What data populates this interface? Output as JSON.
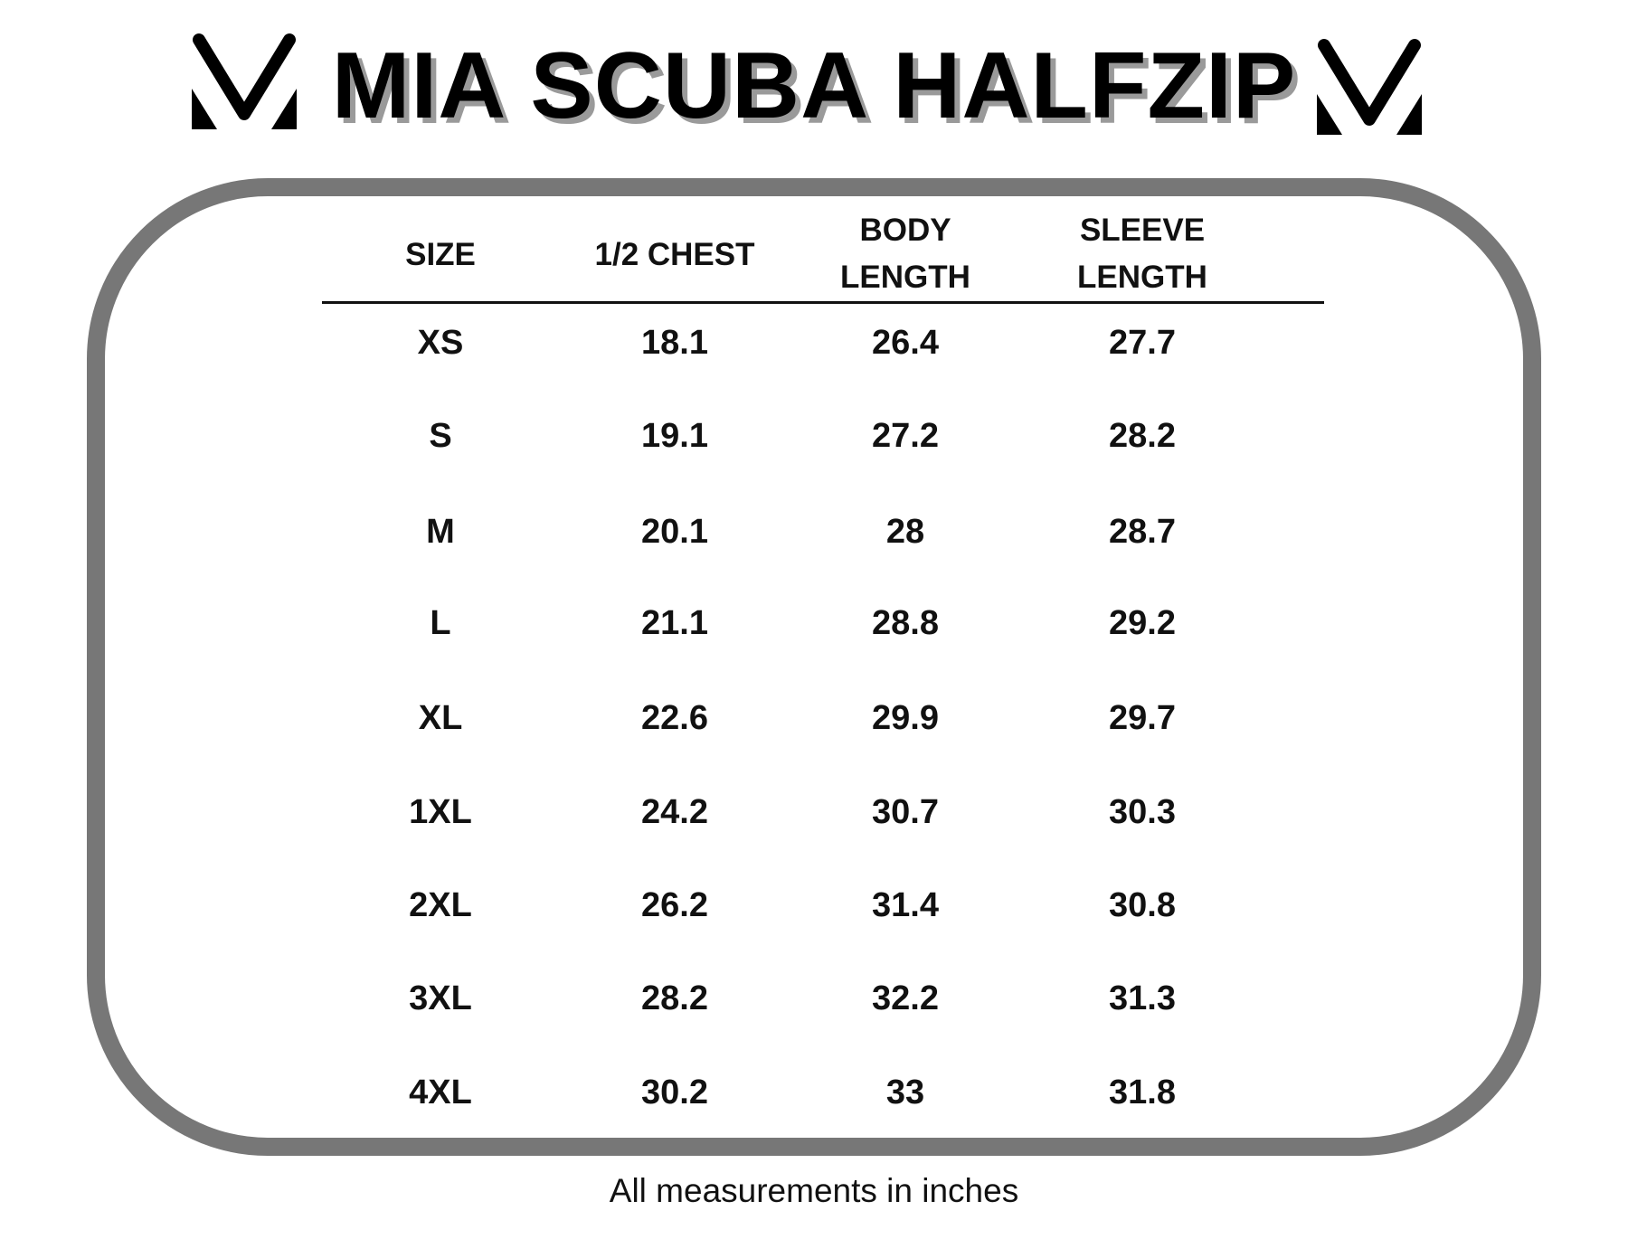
{
  "title": "MIA SCUBA HALFZIP",
  "logo_icon": "chevron-m-logo-icon",
  "border_color": "#777777",
  "table": {
    "headers": [
      {
        "line1": "SIZE",
        "line2": ""
      },
      {
        "line1": "1/2 CHEST",
        "line2": ""
      },
      {
        "line1": "BODY",
        "line2": "LENGTH"
      },
      {
        "line1": "SLEEVE",
        "line2": "LENGTH"
      }
    ],
    "rows": [
      [
        "XS",
        "18.1",
        "26.4",
        "27.7"
      ],
      [
        "S",
        "19.1",
        "27.2",
        "28.2"
      ],
      [
        "M",
        "20.1",
        "28",
        "28.7"
      ],
      [
        "L",
        "21.1",
        "28.8",
        "29.2"
      ],
      [
        "XL",
        "22.6",
        "29.9",
        "29.7"
      ],
      [
        "1XL",
        "24.2",
        "30.7",
        "30.3"
      ],
      [
        "2XL",
        "26.2",
        "31.4",
        "30.8"
      ],
      [
        "3XL",
        "28.2",
        "32.2",
        "31.3"
      ],
      [
        "4XL",
        "30.2",
        "33",
        "31.8"
      ]
    ]
  },
  "footer": "All measurements in inches"
}
